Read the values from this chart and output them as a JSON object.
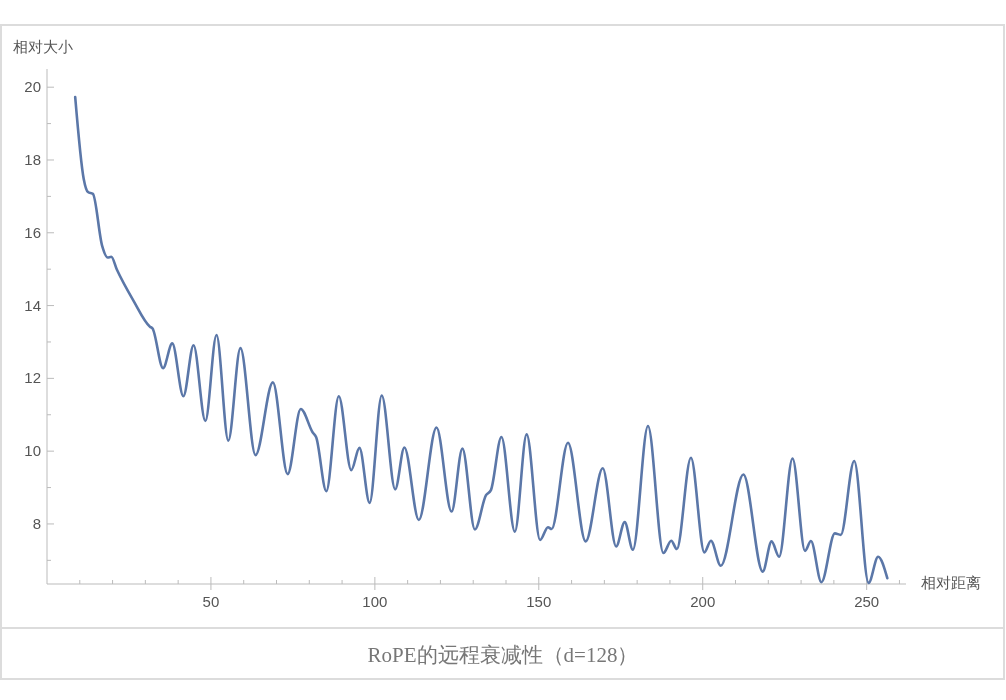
{
  "chart_data": {
    "type": "line",
    "title": "RoPE的远程衰减性（d=128）",
    "xlabel": "相对距离",
    "ylabel": "相对大小",
    "xlim": [
      0,
      262
    ],
    "ylim": [
      6.35,
      20.5
    ],
    "xticks": [
      {
        "value": 10,
        "label": null
      },
      {
        "value": 20,
        "label": null
      },
      {
        "value": 30,
        "label": null
      },
      {
        "value": 40,
        "label": null
      },
      50,
      {
        "value": 60,
        "label": null
      },
      {
        "value": 70,
        "label": null
      },
      {
        "value": 80,
        "label": null
      },
      {
        "value": 90,
        "label": null
      },
      100,
      {
        "value": 110,
        "label": null
      },
      {
        "value": 120,
        "label": null
      },
      {
        "value": 130,
        "label": null
      },
      {
        "value": 140,
        "label": null
      },
      150,
      {
        "value": 160,
        "label": null
      },
      {
        "value": 170,
        "label": null
      },
      {
        "value": 180,
        "label": null
      },
      {
        "value": 190,
        "label": null
      },
      200,
      {
        "value": 210,
        "label": null
      },
      {
        "value": 220,
        "label": null
      },
      {
        "value": 230,
        "label": null
      },
      {
        "value": 240,
        "label": null
      },
      250,
      {
        "value": 260,
        "label": null
      }
    ],
    "yticks": [
      {
        "value": 7,
        "label": null
      },
      8,
      {
        "value": 9,
        "label": null
      },
      10,
      {
        "value": 11,
        "label": null
      },
      12,
      {
        "value": 13,
        "label": null
      },
      14,
      {
        "value": 15,
        "label": null
      },
      16,
      {
        "value": 17,
        "label": null
      },
      18,
      {
        "value": 19,
        "label": null
      },
      20
    ],
    "grid": false,
    "marker": "none",
    "line_style": "solid",
    "series": [
      {
        "color": "#5b77a8",
        "x": [
          8.6,
          11.2,
          12.5,
          14,
          16.8,
          18.5,
          19.6,
          21.3,
          26.4,
          31.4,
          32.2,
          35.4,
          38.2,
          41.6,
          44.7,
          48.3,
          51.7,
          55.3,
          59.0,
          63.6,
          68.9,
          73.4,
          77.4,
          81.0,
          82.1,
          85.2,
          89.0,
          92.8,
          95.3,
          98.4,
          102.1,
          106.2,
          109.0,
          113.4,
          118.8,
          123.4,
          126.7,
          130.5,
          133.9,
          135.4,
          138.6,
          142.7,
          146.3,
          150.4,
          152.8,
          153.9,
          158.9,
          164.3,
          169.5,
          173.6,
          176.2,
          178.7,
          183.3,
          188.0,
          190.4,
          192.1,
          196.4,
          200.5,
          202.5,
          205.5,
          212.4,
          218.3,
          221.0,
          223.3,
          227.4,
          231.2,
          233.0,
          236.2,
          240.3,
          242.1,
          246.2,
          250.6,
          253.5,
          256.3
        ],
        "values": [
          19.73,
          17.48,
          17.12,
          17.07,
          15.65,
          15.32,
          15.34,
          14.99,
          14.13,
          13.42,
          13.37,
          12.28,
          12.96,
          11.51,
          12.91,
          10.83,
          13.19,
          10.29,
          12.83,
          9.89,
          11.89,
          9.37,
          11.16,
          10.52,
          10.38,
          8.9,
          11.51,
          9.48,
          10.09,
          8.58,
          11.53,
          8.95,
          10.1,
          8.11,
          10.65,
          8.34,
          10.07,
          7.85,
          8.79,
          8.93,
          10.39,
          7.79,
          10.46,
          7.56,
          7.91,
          7.86,
          10.23,
          7.52,
          9.53,
          7.38,
          8.05,
          7.29,
          10.69,
          7.2,
          7.54,
          7.31,
          9.82,
          7.22,
          7.54,
          6.85,
          9.36,
          6.69,
          7.52,
          7.1,
          9.8,
          7.26,
          7.53,
          6.4,
          7.74,
          7.7,
          9.73,
          6.38,
          7.1,
          6.51
        ]
      }
    ]
  }
}
